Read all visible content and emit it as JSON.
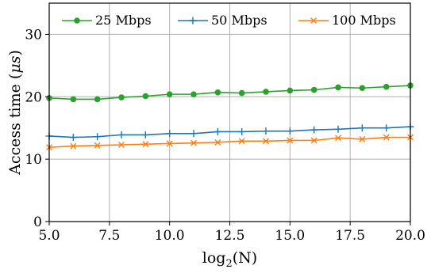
{
  "chart_data": {
    "type": "line",
    "xlabel_base": "log",
    "xlabel_sub": "2",
    "xlabel_arg": "(N)",
    "ylabel_prefix": "Access time (",
    "ylabel_unit": "μs",
    "ylabel_suffix": ")",
    "xlim": [
      5.0,
      20.0
    ],
    "ylim": [
      0,
      35
    ],
    "xticks": [
      5.0,
      7.5,
      10.0,
      12.5,
      15.0,
      17.5,
      20.0
    ],
    "xtick_labels": [
      "5.0",
      "7.5",
      "10.0",
      "12.5",
      "15.0",
      "17.5",
      "20.0"
    ],
    "yticks": [
      0,
      10,
      20,
      30
    ],
    "ytick_labels": [
      "0",
      "10",
      "20",
      "30"
    ],
    "grid": true,
    "legend_position": "top",
    "x": [
      5,
      6,
      7,
      8,
      9,
      10,
      11,
      12,
      13,
      14,
      15,
      16,
      17,
      18,
      19,
      20
    ],
    "series": [
      {
        "name": "25 Mbps",
        "color": "#2ca02c",
        "marker": "circle",
        "values": [
          19.8,
          19.6,
          19.6,
          19.9,
          20.1,
          20.4,
          20.4,
          20.7,
          20.6,
          20.8,
          21.0,
          21.1,
          21.5,
          21.4,
          21.6,
          21.8
        ]
      },
      {
        "name": "50 Mbps",
        "color": "#1f77b4",
        "marker": "plus",
        "values": [
          13.7,
          13.5,
          13.6,
          13.9,
          13.9,
          14.1,
          14.1,
          14.4,
          14.4,
          14.5,
          14.5,
          14.7,
          14.8,
          15.0,
          15.0,
          15.2
        ]
      },
      {
        "name": "100 Mbps",
        "color": "#ff7f0e",
        "marker": "x",
        "values": [
          11.9,
          12.1,
          12.2,
          12.3,
          12.4,
          12.5,
          12.6,
          12.7,
          12.9,
          12.9,
          13.0,
          13.0,
          13.4,
          13.2,
          13.5,
          13.5
        ]
      }
    ]
  }
}
